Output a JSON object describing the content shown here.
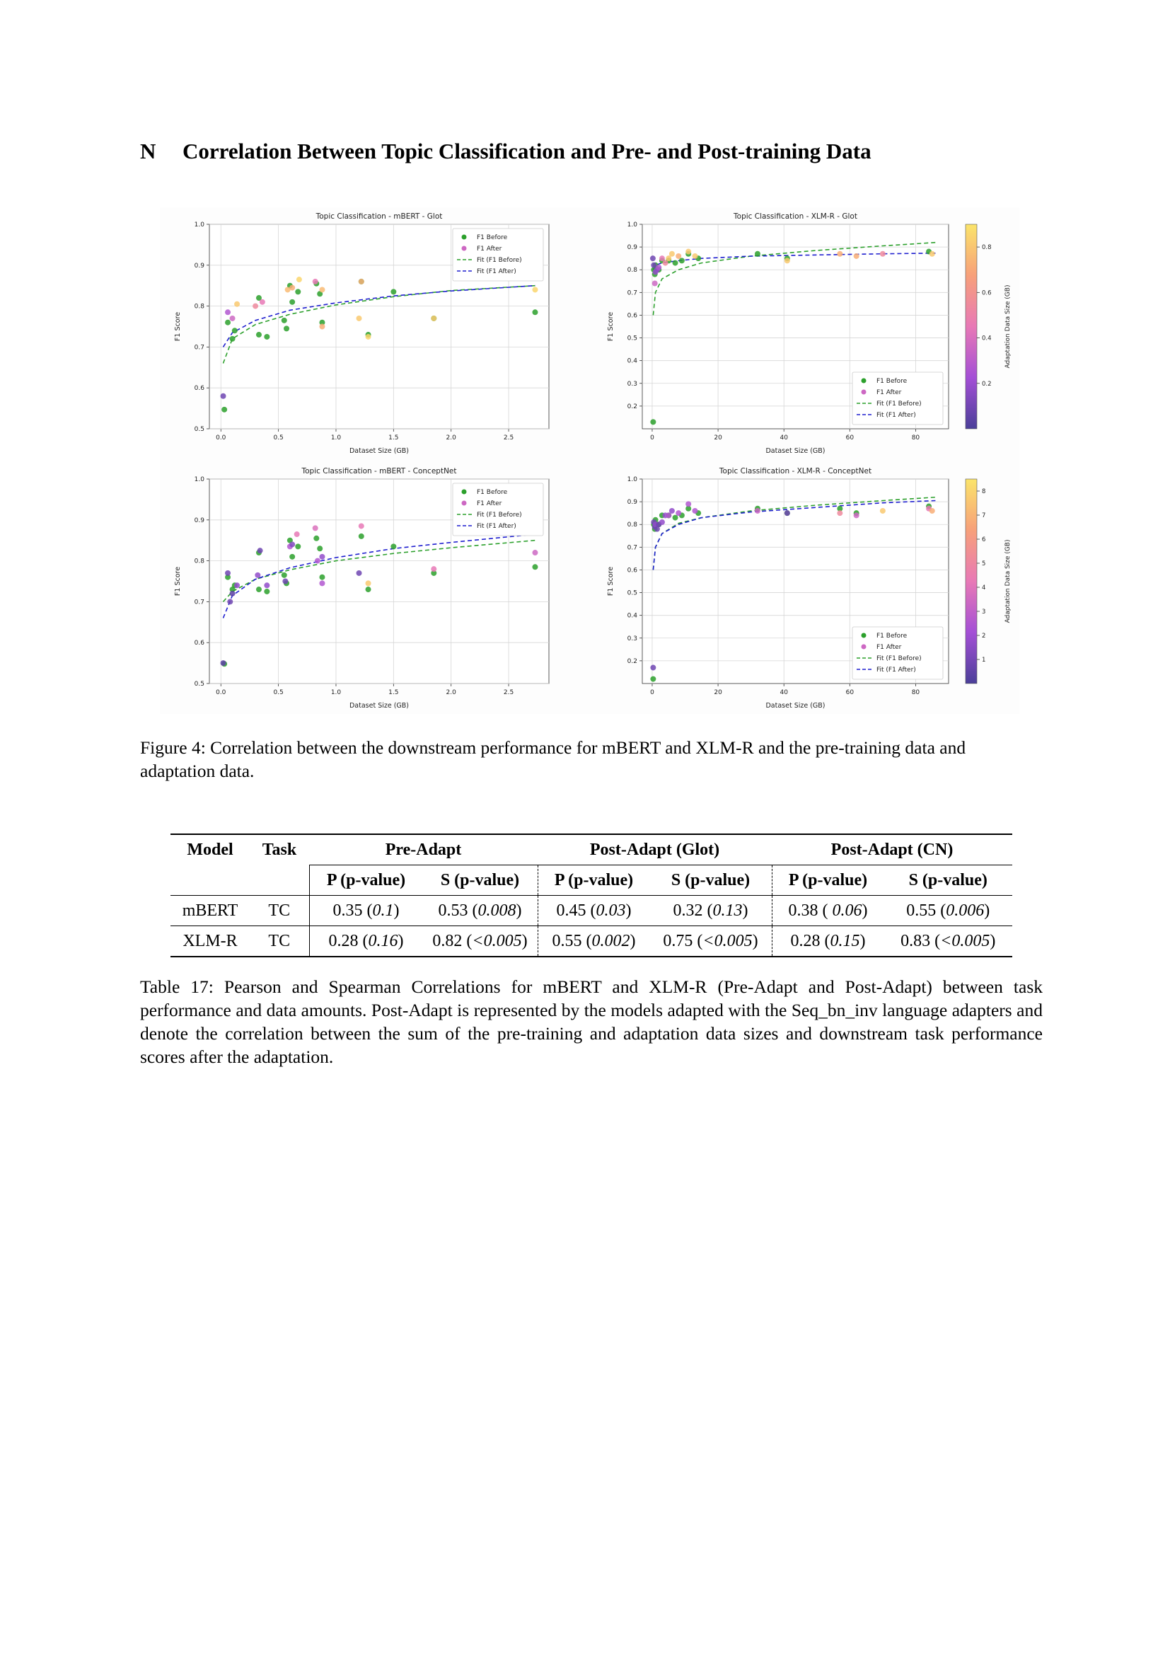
{
  "section": {
    "number": "N",
    "title": "Correlation Between Topic Classification and Pre- and Post-training Data"
  },
  "figure_caption": "Figure 4: Correlation between the downstream performance for mBERT and XLM-R and the pre-training data and adaptation data.",
  "colors": {
    "before": "#2ca02c",
    "after_scale": [
      "#4b3f99",
      "#a44fd6",
      "#e879b6",
      "#f7a07a",
      "#fbe46a"
    ],
    "fit_before": "#2ca02c",
    "fit_after": "#1f1fcf"
  },
  "chart_data": [
    {
      "type": "scatter",
      "title": "Topic Classification - mBERT - Glot",
      "xlabel": "Dataset Size (GB)",
      "ylabel": "F1 Score",
      "xlim": [
        -0.1,
        2.85
      ],
      "ylim": [
        0.5,
        1.0
      ],
      "xticks": [
        "0.0",
        "0.5",
        "1.0",
        "1.5",
        "2.0",
        "2.5"
      ],
      "yticks": [
        "0.5",
        "0.6",
        "0.7",
        "0.8",
        "0.9",
        "1.0"
      ],
      "legend": [
        "F1 Before",
        "F1 After",
        "Fit (F1 Before)",
        "Fit (F1 After)"
      ],
      "legend_position": "top-right",
      "grid": true,
      "before": [
        [
          0.03,
          0.547
        ],
        [
          0.06,
          0.76
        ],
        [
          0.1,
          0.72
        ],
        [
          0.12,
          0.74
        ],
        [
          0.33,
          0.82
        ],
        [
          0.33,
          0.73
        ],
        [
          0.4,
          0.725
        ],
        [
          0.55,
          0.765
        ],
        [
          0.57,
          0.745
        ],
        [
          0.6,
          0.85
        ],
        [
          0.62,
          0.81
        ],
        [
          0.67,
          0.835
        ],
        [
          0.83,
          0.855
        ],
        [
          0.86,
          0.83
        ],
        [
          0.88,
          0.76
        ],
        [
          1.22,
          0.86
        ],
        [
          1.28,
          0.73
        ],
        [
          1.5,
          0.835
        ],
        [
          1.85,
          0.77
        ],
        [
          2.73,
          0.785
        ]
      ],
      "after": [
        [
          0.02,
          0.58,
          0.1
        ],
        [
          0.06,
          0.785,
          0.3
        ],
        [
          0.1,
          0.77,
          0.4
        ],
        [
          0.14,
          0.805,
          0.9
        ],
        [
          0.3,
          0.8,
          0.6
        ],
        [
          0.36,
          0.81,
          0.5
        ],
        [
          0.58,
          0.84,
          0.85
        ],
        [
          0.62,
          0.845,
          0.8
        ],
        [
          0.68,
          0.865,
          0.95
        ],
        [
          0.82,
          0.86,
          0.5
        ],
        [
          0.88,
          0.75,
          0.8
        ],
        [
          0.88,
          0.84,
          0.85
        ],
        [
          1.2,
          0.77,
          0.9
        ],
        [
          1.22,
          0.86,
          0.8
        ],
        [
          1.28,
          0.725,
          0.95
        ],
        [
          1.85,
          0.77,
          0.9
        ],
        [
          2.73,
          0.84,
          0.95
        ]
      ],
      "fit_before": [
        [
          0.02,
          0.66
        ],
        [
          0.1,
          0.72
        ],
        [
          0.3,
          0.755
        ],
        [
          0.6,
          0.78
        ],
        [
          1.0,
          0.803
        ],
        [
          1.5,
          0.823
        ],
        [
          2.0,
          0.838
        ],
        [
          2.73,
          0.85
        ]
      ],
      "fit_after": [
        [
          0.02,
          0.7
        ],
        [
          0.1,
          0.735
        ],
        [
          0.3,
          0.765
        ],
        [
          0.6,
          0.79
        ],
        [
          1.0,
          0.808
        ],
        [
          1.5,
          0.825
        ],
        [
          2.0,
          0.837
        ],
        [
          2.73,
          0.85
        ]
      ]
    },
    {
      "type": "scatter",
      "title": "Topic Classification - XLM-R - Glot",
      "xlabel": "Dataset Size (GB)",
      "ylabel": "F1 Score",
      "xlim": [
        -3,
        90
      ],
      "ylim": [
        0.1,
        1.0
      ],
      "xticks": [
        "0",
        "20",
        "40",
        "60",
        "80"
      ],
      "yticks": [
        "0.2",
        "0.3",
        "0.4",
        "0.5",
        "0.6",
        "0.7",
        "0.8",
        "0.9",
        "1.0"
      ],
      "legend": [
        "F1 Before",
        "F1 After",
        "Fit (F1 Before)",
        "Fit (F1 After)"
      ],
      "legend_position": "bottom-right",
      "colorbar": {
        "label": "Adaptation Data Size (GB)",
        "ticks": [
          "0.2",
          "0.4",
          "0.6",
          "0.8"
        ]
      },
      "grid": true,
      "before": [
        [
          0.3,
          0.13
        ],
        [
          0.5,
          0.8
        ],
        [
          0.8,
          0.78
        ],
        [
          1,
          0.82
        ],
        [
          2,
          0.8
        ],
        [
          3,
          0.84
        ],
        [
          5,
          0.84
        ],
        [
          7,
          0.83
        ],
        [
          9,
          0.84
        ],
        [
          11,
          0.87
        ],
        [
          14,
          0.85
        ],
        [
          32,
          0.87
        ],
        [
          41,
          0.85
        ],
        [
          84,
          0.88
        ]
      ],
      "after": [
        [
          0.2,
          0.85,
          0.1
        ],
        [
          0.5,
          0.82,
          0.1
        ],
        [
          0.8,
          0.74,
          0.4
        ],
        [
          1,
          0.79,
          0.2
        ],
        [
          1.5,
          0.8,
          0.2
        ],
        [
          2,
          0.81,
          0.3
        ],
        [
          3,
          0.85,
          0.5
        ],
        [
          4,
          0.83,
          0.6
        ],
        [
          5,
          0.85,
          0.9
        ],
        [
          6,
          0.87,
          0.9
        ],
        [
          8,
          0.86,
          0.8
        ],
        [
          11,
          0.88,
          0.9
        ],
        [
          13,
          0.86,
          0.9
        ],
        [
          41,
          0.84,
          0.9
        ],
        [
          57,
          0.87,
          0.8
        ],
        [
          62,
          0.86,
          0.8
        ],
        [
          70,
          0.87,
          0.6
        ],
        [
          85,
          0.87,
          0.9
        ]
      ],
      "fit_before": [
        [
          0.3,
          0.6
        ],
        [
          1,
          0.7
        ],
        [
          3,
          0.76
        ],
        [
          8,
          0.8
        ],
        [
          15,
          0.83
        ],
        [
          30,
          0.86
        ],
        [
          50,
          0.885
        ],
        [
          70,
          0.905
        ],
        [
          86,
          0.92
        ]
      ],
      "fit_after": [
        [
          0.3,
          0.8
        ],
        [
          1,
          0.82
        ],
        [
          3,
          0.83
        ],
        [
          8,
          0.84
        ],
        [
          15,
          0.85
        ],
        [
          30,
          0.86
        ],
        [
          50,
          0.865
        ],
        [
          70,
          0.87
        ],
        [
          86,
          0.873
        ]
      ]
    },
    {
      "type": "scatter",
      "title": "Topic Classification - mBERT - ConceptNet",
      "xlabel": "Dataset Size (GB)",
      "ylabel": "F1 Score",
      "xlim": [
        -0.1,
        2.85
      ],
      "ylim": [
        0.5,
        1.0
      ],
      "xticks": [
        "0.0",
        "0.5",
        "1.0",
        "1.5",
        "2.0",
        "2.5"
      ],
      "yticks": [
        "0.5",
        "0.6",
        "0.7",
        "0.8",
        "0.9",
        "1.0"
      ],
      "legend": [
        "F1 Before",
        "F1 After",
        "Fit (F1 Before)",
        "Fit (F1 After)"
      ],
      "legend_position": "top-right",
      "grid": true,
      "before": [
        [
          0.03,
          0.548
        ],
        [
          0.06,
          0.76
        ],
        [
          0.1,
          0.73
        ],
        [
          0.12,
          0.74
        ],
        [
          0.33,
          0.82
        ],
        [
          0.33,
          0.73
        ],
        [
          0.4,
          0.725
        ],
        [
          0.55,
          0.765
        ],
        [
          0.57,
          0.745
        ],
        [
          0.6,
          0.85
        ],
        [
          0.62,
          0.81
        ],
        [
          0.67,
          0.835
        ],
        [
          0.83,
          0.855
        ],
        [
          0.86,
          0.83
        ],
        [
          0.88,
          0.76
        ],
        [
          1.22,
          0.86
        ],
        [
          1.28,
          0.73
        ],
        [
          1.5,
          0.835
        ],
        [
          1.85,
          0.77
        ],
        [
          2.73,
          0.785
        ]
      ],
      "after": [
        [
          0.02,
          0.55,
          0.05
        ],
        [
          0.06,
          0.77,
          0.1
        ],
        [
          0.08,
          0.7,
          0.1
        ],
        [
          0.1,
          0.72,
          0.05
        ],
        [
          0.14,
          0.74,
          0.2
        ],
        [
          0.32,
          0.765,
          0.2
        ],
        [
          0.34,
          0.825,
          0.1
        ],
        [
          0.4,
          0.74,
          0.2
        ],
        [
          0.56,
          0.75,
          0.1
        ],
        [
          0.6,
          0.835,
          0.3
        ],
        [
          0.62,
          0.84,
          0.15
        ],
        [
          0.66,
          0.865,
          0.5
        ],
        [
          0.82,
          0.88,
          0.45
        ],
        [
          0.84,
          0.8,
          0.3
        ],
        [
          0.88,
          0.745,
          0.3
        ],
        [
          0.88,
          0.81,
          0.2
        ],
        [
          1.2,
          0.77,
          0.1
        ],
        [
          1.22,
          0.885,
          0.5
        ],
        [
          1.28,
          0.745,
          0.9
        ],
        [
          1.85,
          0.78,
          0.5
        ],
        [
          2.73,
          0.82,
          0.4
        ]
      ],
      "fit_before": [
        [
          0.02,
          0.7
        ],
        [
          0.1,
          0.725
        ],
        [
          0.3,
          0.755
        ],
        [
          0.6,
          0.778
        ],
        [
          1.0,
          0.8
        ],
        [
          1.5,
          0.818
        ],
        [
          2.0,
          0.832
        ],
        [
          2.73,
          0.85
        ]
      ],
      "fit_after": [
        [
          0.02,
          0.66
        ],
        [
          0.1,
          0.715
        ],
        [
          0.3,
          0.755
        ],
        [
          0.6,
          0.783
        ],
        [
          1.0,
          0.808
        ],
        [
          1.5,
          0.83
        ],
        [
          2.0,
          0.845
        ],
        [
          2.73,
          0.865
        ]
      ]
    },
    {
      "type": "scatter",
      "title": "Topic Classification - XLM-R - ConceptNet",
      "xlabel": "Dataset Size (GB)",
      "ylabel": "F1 Score",
      "xlim": [
        -3,
        90
      ],
      "ylim": [
        0.1,
        1.0
      ],
      "xticks": [
        "0",
        "20",
        "40",
        "60",
        "80"
      ],
      "yticks": [
        "0.2",
        "0.3",
        "0.4",
        "0.5",
        "0.6",
        "0.7",
        "0.8",
        "0.9",
        "1.0"
      ],
      "legend": [
        "F1 Before",
        "F1 After",
        "Fit (F1 Before)",
        "Fit (F1 After)"
      ],
      "legend_position": "bottom-right",
      "colorbar": {
        "label": "Adaptation Data Size (GB)",
        "ticks": [
          "1",
          "2",
          "3",
          "4",
          "5",
          "6",
          "7",
          "8"
        ]
      },
      "grid": true,
      "before": [
        [
          0.3,
          0.12
        ],
        [
          0.5,
          0.8
        ],
        [
          0.8,
          0.78
        ],
        [
          1,
          0.82
        ],
        [
          2,
          0.8
        ],
        [
          3,
          0.84
        ],
        [
          5,
          0.84
        ],
        [
          7,
          0.83
        ],
        [
          9,
          0.84
        ],
        [
          11,
          0.87
        ],
        [
          14,
          0.85
        ],
        [
          32,
          0.87
        ],
        [
          41,
          0.85
        ],
        [
          57,
          0.87
        ],
        [
          62,
          0.85
        ],
        [
          84,
          0.88
        ]
      ],
      "after": [
        [
          0.3,
          0.17,
          0.1
        ],
        [
          0.5,
          0.81,
          0.1
        ],
        [
          0.8,
          0.79,
          0.1
        ],
        [
          1,
          0.8,
          0.2
        ],
        [
          1.5,
          0.78,
          0.1
        ],
        [
          2,
          0.8,
          0.1
        ],
        [
          3,
          0.81,
          0.2
        ],
        [
          4,
          0.84,
          0.2
        ],
        [
          5,
          0.84,
          0.3
        ],
        [
          6,
          0.86,
          0.2
        ],
        [
          8,
          0.85,
          0.3
        ],
        [
          11,
          0.89,
          0.3
        ],
        [
          13,
          0.86,
          0.3
        ],
        [
          32,
          0.86,
          0.4
        ],
        [
          41,
          0.85,
          0.1
        ],
        [
          57,
          0.85,
          0.6
        ],
        [
          62,
          0.84,
          0.4
        ],
        [
          70,
          0.86,
          0.9
        ],
        [
          84,
          0.87,
          0.5
        ],
        [
          85,
          0.86,
          0.8
        ]
      ],
      "fit_before": [
        [
          0.3,
          0.6
        ],
        [
          1,
          0.7
        ],
        [
          3,
          0.76
        ],
        [
          8,
          0.805
        ],
        [
          15,
          0.83
        ],
        [
          30,
          0.86
        ],
        [
          50,
          0.885
        ],
        [
          70,
          0.905
        ],
        [
          86,
          0.92
        ]
      ],
      "fit_after": [
        [
          0.3,
          0.6
        ],
        [
          1,
          0.7
        ],
        [
          3,
          0.76
        ],
        [
          8,
          0.8
        ],
        [
          15,
          0.83
        ],
        [
          30,
          0.855
        ],
        [
          50,
          0.875
        ],
        [
          70,
          0.895
        ],
        [
          86,
          0.905
        ]
      ]
    }
  ],
  "table": {
    "headers": {
      "model": "Model",
      "task": "Task",
      "pre": "Pre-Adapt",
      "glot": "Post-Adapt (Glot)",
      "cn": "Post-Adapt (CN)",
      "p": "P (p-value)",
      "s": "S (p-value)"
    },
    "rows": [
      {
        "model": "mBERT",
        "task": "TC",
        "pre_p": "0.35",
        "pre_pv": "0.1",
        "pre_s": "0.53",
        "pre_sv": "0.008",
        "glot_p": "0.45",
        "glot_pv": "0.03",
        "glot_s": "0.32",
        "glot_sv": "0.13",
        "cn_p": "0.38",
        "cn_pv": " 0.06",
        "cn_s": "0.55",
        "cn_sv": "0.006"
      },
      {
        "model": "XLM-R",
        "task": "TC",
        "pre_p": "0.28",
        "pre_pv": "0.16",
        "pre_s": "0.82",
        "pre_sv": "<0.005",
        "glot_p": "0.55",
        "glot_pv": "0.002",
        "glot_s": "0.75",
        "glot_sv": "<0.005",
        "cn_p": "0.28",
        "cn_pv": "0.15",
        "cn_s": "0.83",
        "cn_sv": "<0.005"
      }
    ]
  },
  "table_caption": "Table 17: Pearson and Spearman Correlations for mBERT and XLM-R (Pre-Adapt and Post-Adapt) between task performance and data amounts. Post-Adapt is represented by the models adapted with the Seq_bn_inv language adapters and denote the correlation between the sum of the pre-training and adaptation data sizes and downstream task performance scores after the adaptation."
}
